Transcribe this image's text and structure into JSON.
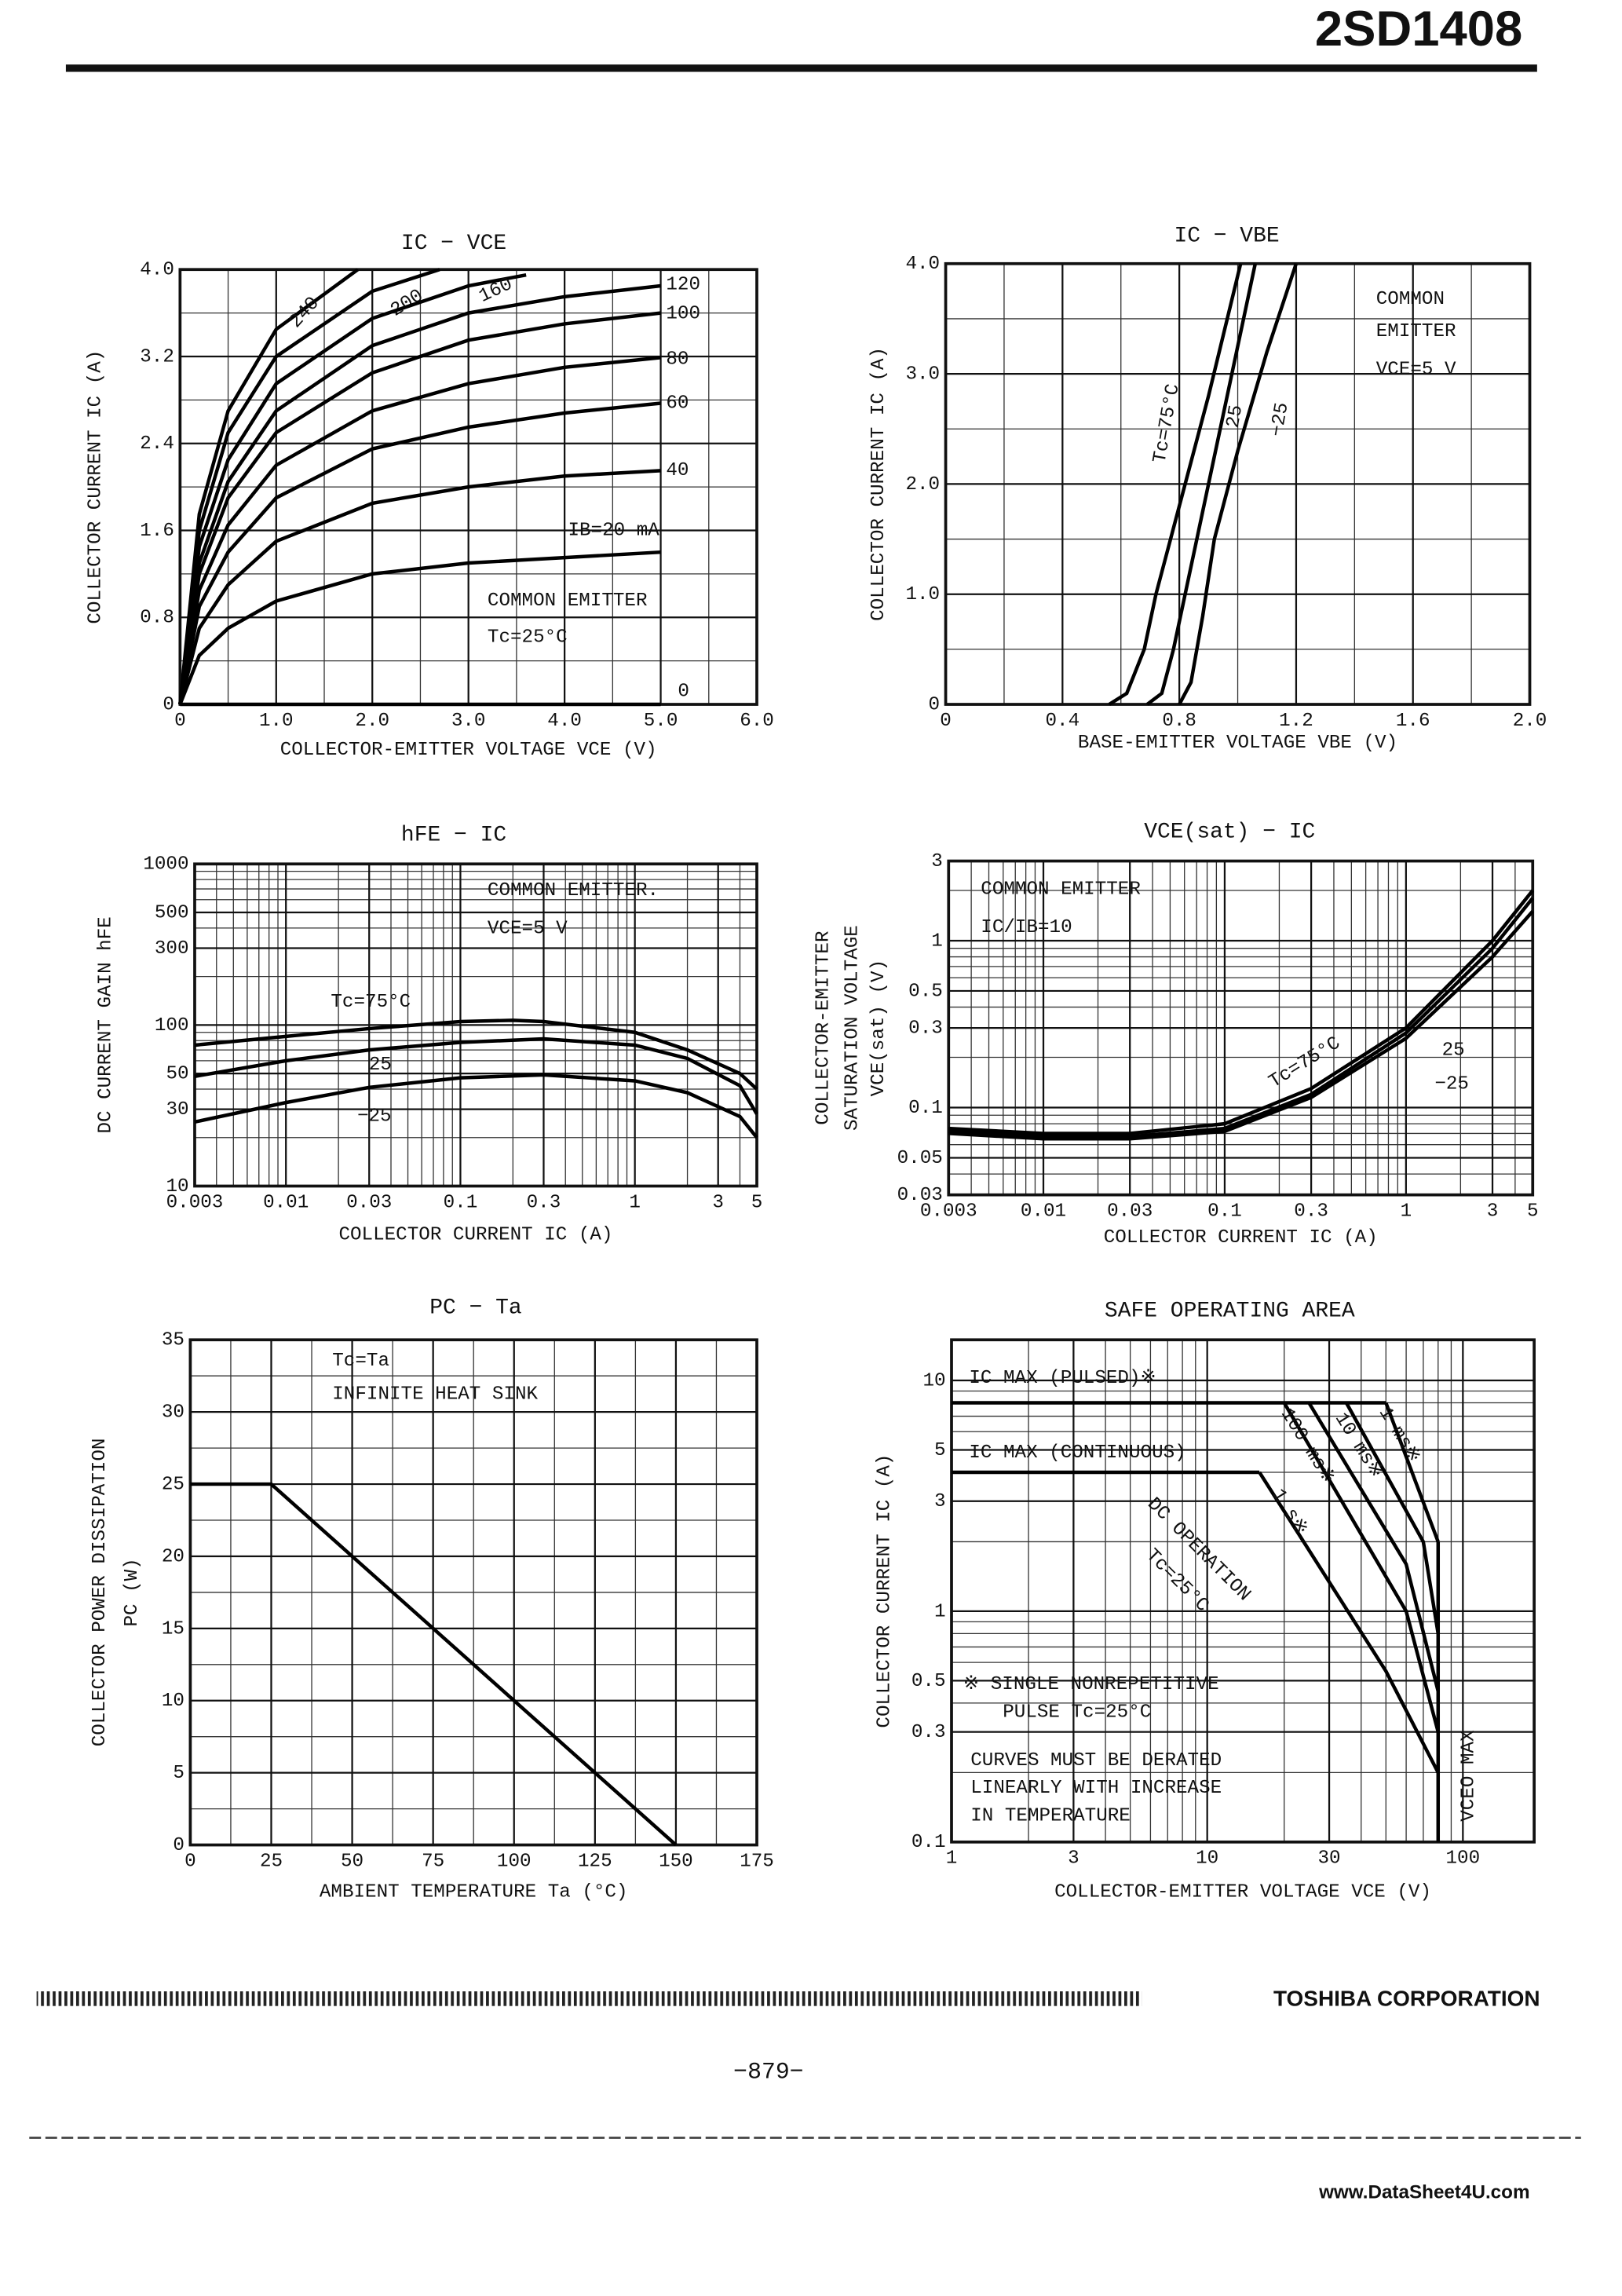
{
  "header": {
    "part_number": "2SD1408"
  },
  "footer": {
    "company": "TOSHIBA CORPORATION",
    "page": "−879−",
    "watermark": "www.DataSheet4U.com"
  },
  "chart_data": [
    {
      "type": "line",
      "title": "IC − VCE",
      "xlabel": "COLLECTOR-EMITTER VOLTAGE  VCE (V)",
      "ylabel": [
        "COLLECTOR CURRENT  IC (A)"
      ],
      "xlim": [
        0,
        6
      ],
      "ylim": [
        0,
        4
      ],
      "xscale": "linear",
      "yscale": "linear",
      "grid": true,
      "xticks": [
        0,
        {
          "value": 1,
          "label": "1.0"
        },
        {
          "value": 2,
          "label": "2.0"
        },
        {
          "value": 3,
          "label": "3.0"
        },
        {
          "value": 4,
          "label": "4.0"
        },
        {
          "value": 5,
          "label": "5.0"
        },
        {
          "value": 6,
          "label": "6.0"
        }
      ],
      "yticks": [
        0,
        0.8,
        1.6,
        2.4,
        3.2,
        {
          "value": 4,
          "label": "4.0"
        }
      ],
      "minor_xticks": [
        0.5,
        1.5,
        2.5,
        3.5,
        4.5,
        5.5
      ],
      "minor_yticks": [
        0.4,
        1.2,
        2,
        2.8,
        3.6
      ],
      "annotations": [
        "COMMON EMITTER",
        "Tc=25°C"
      ],
      "series": [
        {
          "name": "240",
          "color": "#000000",
          "x": [
            0,
            0.2,
            0.5,
            1,
            1.85
          ],
          "values": [
            0,
            1.75,
            2.7,
            3.45,
            4
          ]
        },
        {
          "name": "200",
          "color": "#000000",
          "x": [
            0,
            0.2,
            0.5,
            1,
            2,
            2.7
          ],
          "values": [
            0,
            1.6,
            2.5,
            3.2,
            3.8,
            4
          ]
        },
        {
          "name": "160",
          "color": "#000000",
          "x": [
            0,
            0.2,
            0.5,
            1,
            2,
            3,
            3.6
          ],
          "values": [
            0,
            1.45,
            2.25,
            2.95,
            3.55,
            3.85,
            3.95
          ]
        },
        {
          "name": "120",
          "color": "#000000",
          "x": [
            0,
            0.2,
            0.5,
            1,
            2,
            3,
            4,
            5
          ],
          "values": [
            0,
            1.3,
            2.05,
            2.7,
            3.3,
            3.6,
            3.75,
            3.85
          ]
        },
        {
          "name": "100",
          "color": "#000000",
          "x": [
            0,
            0.2,
            0.5,
            1,
            2,
            3,
            4,
            5
          ],
          "values": [
            0,
            1.2,
            1.9,
            2.5,
            3.05,
            3.35,
            3.5,
            3.6
          ]
        },
        {
          "name": "80",
          "color": "#000000",
          "x": [
            0,
            0.2,
            0.5,
            1,
            2,
            3,
            4,
            5
          ],
          "values": [
            0,
            1.05,
            1.65,
            2.2,
            2.7,
            2.95,
            3.1,
            3.19
          ]
        },
        {
          "name": "60",
          "color": "#000000",
          "x": [
            0,
            0.2,
            0.5,
            1,
            2,
            3,
            4,
            5
          ],
          "values": [
            0,
            0.9,
            1.4,
            1.9,
            2.35,
            2.55,
            2.68,
            2.77
          ]
        },
        {
          "name": "40",
          "color": "#000000",
          "x": [
            0,
            0.2,
            0.5,
            1,
            2,
            3,
            4,
            5
          ],
          "values": [
            0,
            0.7,
            1.1,
            1.5,
            1.85,
            2,
            2.1,
            2.15
          ]
        },
        {
          "name": "IB=20 mA",
          "color": "#000000",
          "x": [
            0,
            0.2,
            0.5,
            1,
            2,
            3,
            4,
            5
          ],
          "values": [
            0,
            0.45,
            0.7,
            0.95,
            1.2,
            1.3,
            1.35,
            1.4
          ]
        },
        {
          "name": "0",
          "color": "#000000",
          "x": [
            0,
            5
          ],
          "values": [
            0,
            0
          ]
        }
      ]
    },
    {
      "type": "line",
      "title": "IC − VBE",
      "xlabel": "BASE-EMITTER VOLTAGE  VBE (V)",
      "ylabel": [
        "COLLECTOR CURRENT  IC (A)"
      ],
      "xlim": [
        0,
        2
      ],
      "ylim": [
        0,
        4
      ],
      "xscale": "linear",
      "yscale": "linear",
      "grid": true,
      "xticks": [
        0,
        0.4,
        0.8,
        1.2,
        1.6,
        {
          "value": 2,
          "label": "2.0"
        }
      ],
      "yticks": [
        0,
        {
          "value": 1,
          "label": "1.0"
        },
        {
          "value": 2,
          "label": "2.0"
        },
        {
          "value": 3,
          "label": "3.0"
        },
        {
          "value": 4,
          "label": "4.0"
        }
      ],
      "minor_xticks": [
        0.2,
        0.6,
        1,
        1.4,
        1.8
      ],
      "minor_yticks": [
        0.5,
        1.5,
        2.5,
        3.5
      ],
      "annotations": [
        "COMMON",
        "EMITTER",
        "VCE=5 V"
      ],
      "series": [
        {
          "name": "Tc=75°C",
          "color": "#000000",
          "x": [
            0.56,
            0.62,
            0.68,
            0.72,
            0.8,
            0.9,
            1.01
          ],
          "values": [
            0,
            0.1,
            0.5,
            1,
            1.8,
            2.8,
            4
          ]
        },
        {
          "name": "25",
          "color": "#000000",
          "x": [
            0.69,
            0.74,
            0.78,
            0.82,
            0.9,
            0.98,
            1.06
          ],
          "values": [
            0,
            0.1,
            0.5,
            1,
            2,
            3,
            4
          ]
        },
        {
          "name": "−25",
          "color": "#000000",
          "x": [
            0.8,
            0.84,
            0.88,
            0.92,
            1,
            1.1,
            1.2
          ],
          "values": [
            0,
            0.2,
            0.8,
            1.5,
            2.3,
            3.2,
            4
          ]
        }
      ]
    },
    {
      "type": "line",
      "title": "hFE − IC",
      "xlabel": "COLLECTOR CURRENT  IC (A)",
      "ylabel": [
        "DC CURRENT GAIN  hFE"
      ],
      "xlim": [
        0.003,
        5
      ],
      "ylim": [
        10,
        1000
      ],
      "xscale": "log",
      "yscale": "log",
      "grid": true,
      "xticks": [
        0.003,
        0.01,
        0.03,
        0.1,
        0.3,
        1,
        3,
        5
      ],
      "yticks": [
        10,
        30,
        50,
        100,
        300,
        500,
        1000
      ],
      "minor_xticks": [
        0.004,
        0.005,
        0.006,
        0.007,
        0.008,
        0.009,
        0.02,
        0.04,
        0.05,
        0.06,
        0.07,
        0.08,
        0.09,
        0.2,
        0.4,
        0.5,
        0.6,
        0.7,
        0.8,
        0.9,
        2,
        4
      ],
      "minor_yticks": [
        20,
        40,
        60,
        70,
        80,
        90,
        200,
        400,
        600,
        700,
        800,
        900
      ],
      "annotations": [
        "COMMON EMITTER.",
        "VCE=5 V"
      ],
      "series": [
        {
          "name": "Tc=75°C",
          "color": "#000000",
          "x": [
            0.003,
            0.01,
            0.03,
            0.1,
            0.2,
            0.3,
            1,
            2,
            4,
            5
          ],
          "values": [
            75,
            85,
            95,
            105,
            107,
            105,
            90,
            70,
            50,
            40
          ]
        },
        {
          "name": "25",
          "color": "#000000",
          "x": [
            0.003,
            0.01,
            0.03,
            0.1,
            0.3,
            1,
            2,
            4,
            5
          ],
          "values": [
            48,
            60,
            70,
            78,
            82,
            75,
            62,
            42,
            28
          ]
        },
        {
          "name": "−25",
          "color": "#000000",
          "x": [
            0.003,
            0.01,
            0.03,
            0.1,
            0.3,
            1,
            2,
            4,
            5
          ],
          "values": [
            25,
            33,
            41,
            47,
            49,
            45,
            38,
            27,
            20
          ]
        }
      ]
    },
    {
      "type": "line",
      "title": "VCE(sat) − IC",
      "xlabel": "COLLECTOR CURRENT  IC (A)",
      "ylabel": [
        "COLLECTOR-EMITTER",
        "SATURATION VOLTAGE",
        "VCE(sat) (V)"
      ],
      "xlim": [
        0.003,
        5
      ],
      "ylim": [
        0.03,
        3
      ],
      "xscale": "log",
      "yscale": "log",
      "grid": true,
      "xticks": [
        0.003,
        0.01,
        0.03,
        0.1,
        0.3,
        1,
        3,
        5
      ],
      "yticks": [
        0.03,
        0.05,
        0.1,
        0.3,
        0.5,
        1,
        3
      ],
      "minor_xticks": [
        0.004,
        0.005,
        0.006,
        0.007,
        0.008,
        0.009,
        0.02,
        0.04,
        0.05,
        0.06,
        0.07,
        0.08,
        0.09,
        0.2,
        0.4,
        0.5,
        0.6,
        0.7,
        0.8,
        0.9,
        2,
        4
      ],
      "minor_yticks": [
        0.04,
        0.06,
        0.07,
        0.08,
        0.09,
        0.2,
        0.4,
        0.6,
        0.7,
        0.8,
        0.9,
        2
      ],
      "annotations": [
        "COMMON EMITTER",
        "IC/IB=10"
      ],
      "series": [
        {
          "name": "Tc=75°C",
          "color": "#000000",
          "x": [
            0.003,
            0.01,
            0.03,
            0.1,
            0.3,
            1,
            3,
            5
          ],
          "values": [
            0.075,
            0.07,
            0.07,
            0.08,
            0.13,
            0.3,
            1,
            2
          ]
        },
        {
          "name": "25",
          "color": "#000000",
          "x": [
            0.003,
            0.01,
            0.03,
            0.1,
            0.3,
            1,
            3,
            5
          ],
          "values": [
            0.072,
            0.067,
            0.067,
            0.075,
            0.12,
            0.28,
            0.9,
            1.8
          ]
        },
        {
          "name": "−25",
          "color": "#000000",
          "x": [
            0.003,
            0.01,
            0.03,
            0.1,
            0.3,
            1,
            3,
            5
          ],
          "values": [
            0.07,
            0.065,
            0.065,
            0.072,
            0.115,
            0.26,
            0.8,
            1.5
          ]
        }
      ]
    },
    {
      "type": "line",
      "title": "PC − Ta",
      "xlabel": "AMBIENT TEMPERATURE  Ta (°C)",
      "ylabel": [
        "COLLECTOR POWER DISSIPATION",
        "PC (W)"
      ],
      "xlim": [
        0,
        175
      ],
      "ylim": [
        0,
        35
      ],
      "xscale": "linear",
      "yscale": "linear",
      "grid": true,
      "xticks": [
        0,
        25,
        50,
        75,
        100,
        125,
        150,
        175
      ],
      "yticks": [
        0,
        5,
        10,
        15,
        20,
        25,
        30,
        35
      ],
      "minor_xticks": [
        12.5,
        37.5,
        62.5,
        87.5,
        112.5,
        137.5,
        162.5
      ],
      "minor_yticks": [
        2.5,
        7.5,
        12.5,
        17.5,
        22.5,
        27.5,
        32.5
      ],
      "annotations": [
        "Tc=Ta",
        "INFINITE HEAT SINK"
      ],
      "series": [
        {
          "name": null,
          "color": "#000000",
          "x": [
            0,
            25,
            150
          ],
          "values": [
            25,
            25,
            0
          ]
        }
      ]
    },
    {
      "type": "line",
      "title": "SAFE OPERATING AREA",
      "xlabel": "COLLECTOR-EMITTER VOLTAGE  VCE (V)",
      "ylabel": [
        "COLLECTOR CURRENT  IC (A)"
      ],
      "xlim": [
        1,
        190
      ],
      "ylim": [
        0.1,
        15
      ],
      "xscale": "log",
      "yscale": "log",
      "grid": true,
      "xticks": [
        1,
        3,
        10,
        30,
        100
      ],
      "yticks": [
        0.1,
        0.3,
        0.5,
        1,
        3,
        5,
        10
      ],
      "minor_xticks": [
        2,
        4,
        5,
        6,
        7,
        8,
        9,
        20,
        40,
        50,
        60,
        70,
        80,
        90
      ],
      "minor_yticks": [
        0.2,
        0.4,
        0.6,
        0.7,
        0.8,
        0.9,
        2,
        4,
        6,
        7,
        8,
        9
      ],
      "annotations": [
        "Tc=25°C",
        "※ SINGLE NONREPETITIVE",
        "PULSE    Tc=25°C",
        "CURVES MUST BE DERATED",
        "LINEARLY WITH INCREASE",
        "IN TEMPERATURE"
      ],
      "series": [
        {
          "name": "IC MAX (PULSED)※",
          "color": "#000000",
          "x": [
            1,
            50
          ],
          "values": [
            8,
            8
          ]
        },
        {
          "name": "IC MAX (CONTINUOUS)",
          "color": "#000000",
          "x": [
            1,
            16
          ],
          "values": [
            4,
            4
          ]
        },
        {
          "name": "DC OPERATION",
          "color": "#000000",
          "x": [
            16,
            50,
            80
          ],
          "values": [
            4,
            0.55,
            0.2
          ]
        },
        {
          "name": "1 s※",
          "color": "#000000",
          "x": [
            20,
            60,
            80
          ],
          "values": [
            8,
            1,
            0.3
          ]
        },
        {
          "name": "100 ms※",
          "color": "#000000",
          "x": [
            25,
            60,
            80
          ],
          "values": [
            8,
            1.6,
            0.45
          ]
        },
        {
          "name": "10 ms※",
          "color": "#000000",
          "x": [
            35,
            70,
            80
          ],
          "values": [
            8,
            2,
            0.8
          ]
        },
        {
          "name": "1 ms※",
          "color": "#000000",
          "x": [
            50,
            80
          ],
          "values": [
            8,
            2
          ]
        },
        {
          "name": "VCEO MAX",
          "color": "#000000",
          "x": [
            80,
            80
          ],
          "values": [
            0.1,
            2
          ]
        }
      ]
    }
  ]
}
